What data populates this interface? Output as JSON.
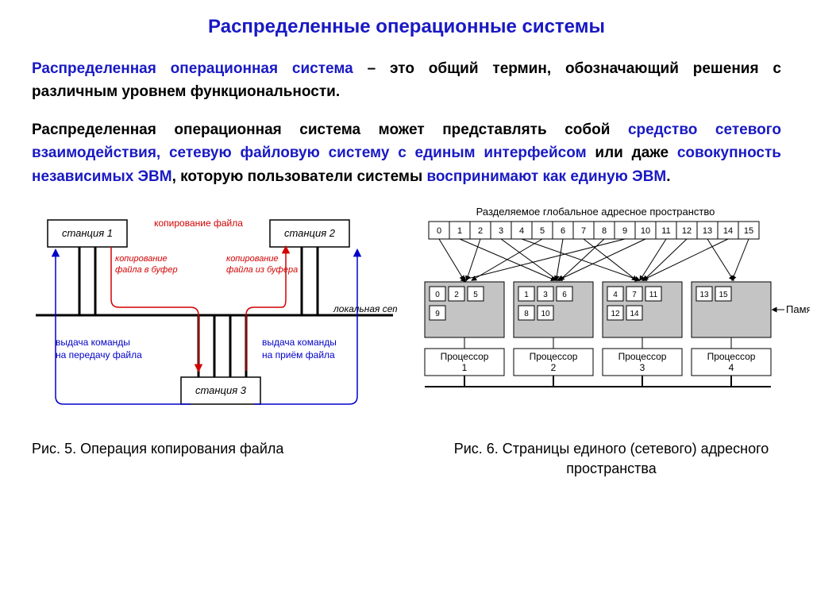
{
  "title": "Распределенные операционные системы",
  "title_color": "#1919c4",
  "para1": {
    "segments": [
      {
        "text": "Распределенная операционная система",
        "color": "#1919c4"
      },
      {
        "text": " – это ",
        "color": "#000000"
      },
      {
        "text": "общий термин, обозначающий решения с различным уровнем функциональности.",
        "color": "#000000"
      }
    ]
  },
  "para2": {
    "segments": [
      {
        "text": "Распределенная операционная система",
        "color": "#000000"
      },
      {
        "text": " может представлять собой ",
        "color": "#000000"
      },
      {
        "text": "средство сетевого взаимодействия, сетевую файловую систему с единым интерфейсом",
        "color": "#1919c4"
      },
      {
        "text": " или даже ",
        "color": "#000000"
      },
      {
        "text": "совокупность независимых ЭВМ",
        "color": "#1919c4"
      },
      {
        "text": ", которую пользователи системы ",
        "color": "#000000"
      },
      {
        "text": "воспринимают как единую ЭВМ",
        "color": "#1919c4"
      },
      {
        "text": ".",
        "color": "#000000"
      }
    ]
  },
  "fig5": {
    "caption": "Рис. 5. Операция копирования файла",
    "stations": {
      "s1": "станция 1",
      "s2": "станция 2",
      "s3": "станция 3"
    },
    "labels": {
      "copy_file": "копирование файла",
      "copy_to_buf": "копирование файла в буфер",
      "copy_from_buf": "копирование файла из буфера",
      "cmd_send": "выдача команды на передачу файла",
      "cmd_recv": "выдача команды на приём файла",
      "local_net": "локальная сеть"
    },
    "colors": {
      "box_stroke": "#000000",
      "box_fill": "#ffffff",
      "red": "#d20000",
      "blue": "#0000c8",
      "net": "#000000"
    }
  },
  "fig6": {
    "caption": "Рис. 6. Страницы единого (сетевого) адресного пространства",
    "header": "Разделяемое глобальное адресное пространство",
    "pages": [
      0,
      1,
      2,
      3,
      4,
      5,
      6,
      7,
      8,
      9,
      10,
      11,
      12,
      13,
      14,
      15
    ],
    "processors": [
      {
        "label": "Процессор 1",
        "pages": [
          [
            0,
            2,
            5
          ],
          [
            9
          ]
        ]
      },
      {
        "label": "Процессор 2",
        "pages": [
          [
            1,
            3,
            6
          ],
          [
            8,
            10
          ]
        ]
      },
      {
        "label": "Процессор 3",
        "pages": [
          [
            4,
            7,
            11
          ],
          [
            12,
            14
          ]
        ]
      },
      {
        "label": "Процессор 4",
        "pages": [
          [
            13,
            15
          ]
        ]
      }
    ],
    "mem_label": "Память",
    "colors": {
      "stroke": "#000000",
      "page_fill": "#ffffff",
      "proc_fill": "#c4c4c4"
    }
  }
}
